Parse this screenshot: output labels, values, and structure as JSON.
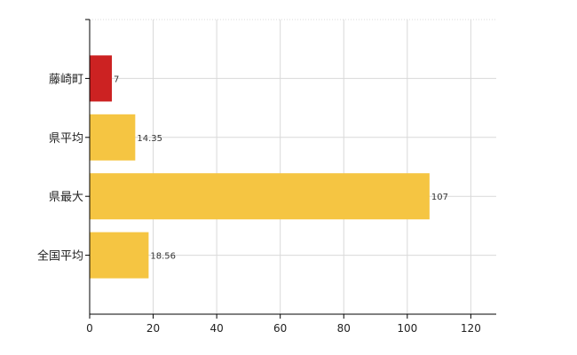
{
  "chart_data": {
    "type": "bar",
    "orientation": "horizontal",
    "categories": [
      "藤崎町",
      "県平均",
      "県最大",
      "全国平均"
    ],
    "values": [
      7,
      14.35,
      107,
      18.56
    ],
    "data_labels": [
      "7",
      "14.35",
      "107",
      "18.56"
    ],
    "colors": [
      "#cc2222",
      "#f5c542",
      "#f5c542",
      "#f5c542"
    ],
    "xlim": [
      0,
      128
    ],
    "x_ticks": [
      0,
      20,
      40,
      60,
      80,
      100,
      120
    ],
    "grid": true,
    "title": "",
    "xlabel": "",
    "ylabel": ""
  }
}
